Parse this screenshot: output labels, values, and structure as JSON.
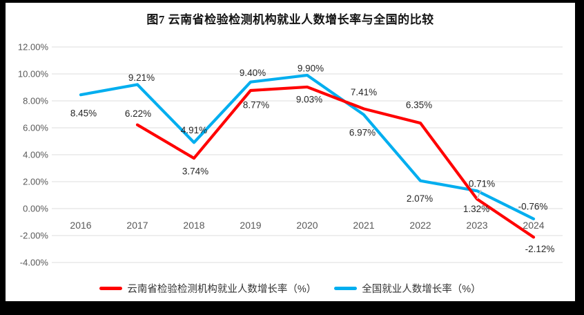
{
  "frame": {
    "color": "#000000",
    "panel_color": "#ffffff"
  },
  "chart_data": {
    "type": "line",
    "title": "图7  云南省检验检测机构就业人数增长率与全国的比较",
    "categories": [
      "2016",
      "2017",
      "2018",
      "2019",
      "2020",
      "2021",
      "2022",
      "2023",
      "2024"
    ],
    "xlabel": "",
    "ylabel": "",
    "ylim": [
      -4,
      12
    ],
    "y_tick_step": 2,
    "y_ticks": [
      "12.00%",
      "10.00%",
      "8.00%",
      "6.00%",
      "4.00%",
      "2.00%",
      "0.00%",
      "-2.00%",
      "-4.00%"
    ],
    "grid": true,
    "legend_position": "bottom",
    "series": [
      {
        "name": "云南省检验检测机构就业人数增长率（%）",
        "color": "#FF0000",
        "values": [
          null,
          6.22,
          3.74,
          8.77,
          9.03,
          7.41,
          6.35,
          0.71,
          -2.12
        ],
        "point_labels": [
          "",
          "6.22%",
          "3.74%",
          "8.77%",
          "9.03%",
          "7.41%",
          "6.35%",
          "0.71%",
          "-2.12%"
        ]
      },
      {
        "name": "全国就业人数增长率（%）",
        "color": "#00AEEF",
        "values": [
          8.45,
          9.21,
          4.91,
          9.4,
          9.9,
          6.97,
          2.07,
          1.32,
          -0.76
        ],
        "point_labels": [
          "8.45%",
          "9.21%",
          "4.91%",
          "9.40%",
          "9.90%",
          "6.97%",
          "2.07%",
          "1.32%",
          "-0.76%"
        ]
      }
    ],
    "colors": {
      "grid": "#DCDCDC",
      "axis_text": "#595959",
      "label_text": "#262626",
      "leader": "#BFBFBF"
    }
  }
}
